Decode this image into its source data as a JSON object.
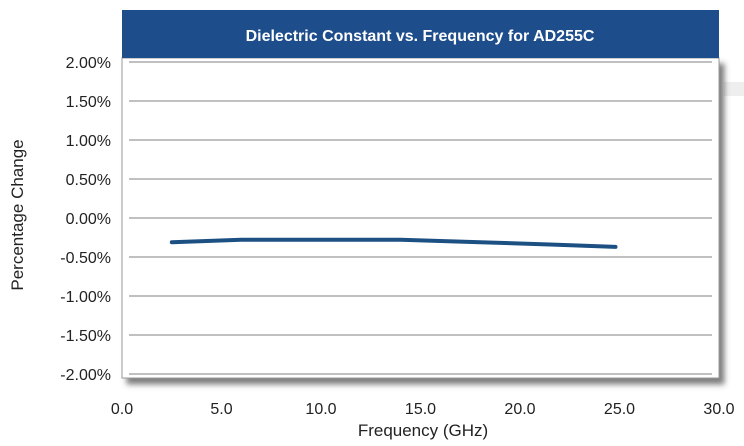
{
  "chart_data": {
    "type": "line",
    "title": "Dielectric Constant vs. Frequency for AD255C",
    "xlabel": "Frequency (GHz)",
    "ylabel": "Percentage Change",
    "xlim": [
      0,
      30
    ],
    "ylim": [
      -2.0,
      2.0
    ],
    "x_ticks": [
      0,
      5,
      10,
      15,
      20,
      25,
      30
    ],
    "x_tick_labels": [
      "0.0",
      "5.0",
      "10.0",
      "15.0",
      "20.0",
      "25.0",
      "30.0"
    ],
    "y_ticks": [
      2.0,
      1.5,
      1.0,
      0.5,
      0.0,
      -0.5,
      -1.0,
      -1.5,
      -2.0
    ],
    "y_tick_labels": [
      "2.00%",
      "1.50%",
      "1.00%",
      "0.50%",
      "0.00%",
      "-0.50%",
      "-1.00%",
      "-1.50%",
      "-2.00%"
    ],
    "grid": "horizontal",
    "series": [
      {
        "color": "#1c4f82",
        "x": [
          2.5,
          6,
          10,
          14,
          18,
          21.5,
          24.8
        ],
        "y": [
          -0.31,
          -0.28,
          -0.28,
          -0.28,
          -0.31,
          -0.34,
          -0.37
        ]
      }
    ],
    "colors": {
      "title_bar": "#1e4d8c",
      "title_text": "#ffffff",
      "plot_background": "#ffffff",
      "grid": "#808080",
      "shadow": "#555555",
      "tick_text": "#222222"
    }
  }
}
